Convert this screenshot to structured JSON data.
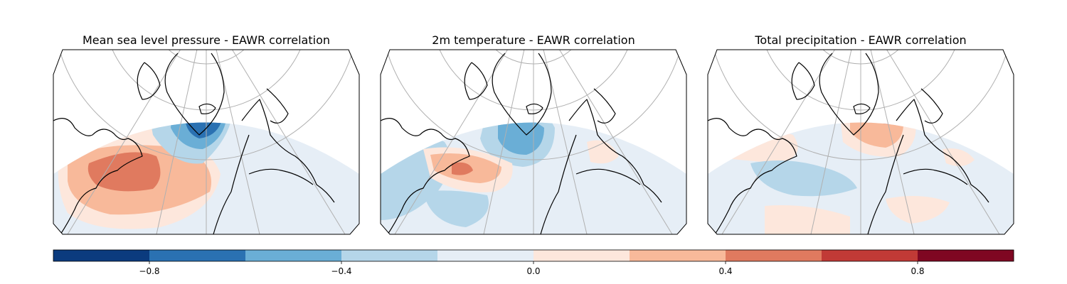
{
  "panels": [
    {
      "title": "Mean sea level pressure - EAWR correlation"
    },
    {
      "title": "2m temperature - EAWR correlation"
    },
    {
      "title": "Total precipitation - EAWR correlation"
    }
  ],
  "colorbar": {
    "min": -1.0,
    "max": 1.0,
    "boundaries": [
      -1.0,
      -0.8,
      -0.6,
      -0.4,
      -0.2,
      0.0,
      0.2,
      0.4,
      0.6,
      0.8,
      1.0
    ],
    "colors": [
      "#0b3b7e",
      "#2a71b2",
      "#6aaed6",
      "#b5d6e9",
      "#e6eef6",
      "#fde7dc",
      "#f8b99a",
      "#e07a5f",
      "#c13a36",
      "#7f0722"
    ],
    "ticks": [
      {
        "value": -0.8,
        "label": "−0.8"
      },
      {
        "value": -0.4,
        "label": "−0.4"
      },
      {
        "value": 0.0,
        "label": "0.0"
      },
      {
        "value": 0.4,
        "label": "0.4"
      },
      {
        "value": 0.8,
        "label": "0.8"
      }
    ]
  },
  "colors": {
    "land_outline": "#000000",
    "gridline": "#b0b0b0",
    "map_frame": "#000000"
  }
}
